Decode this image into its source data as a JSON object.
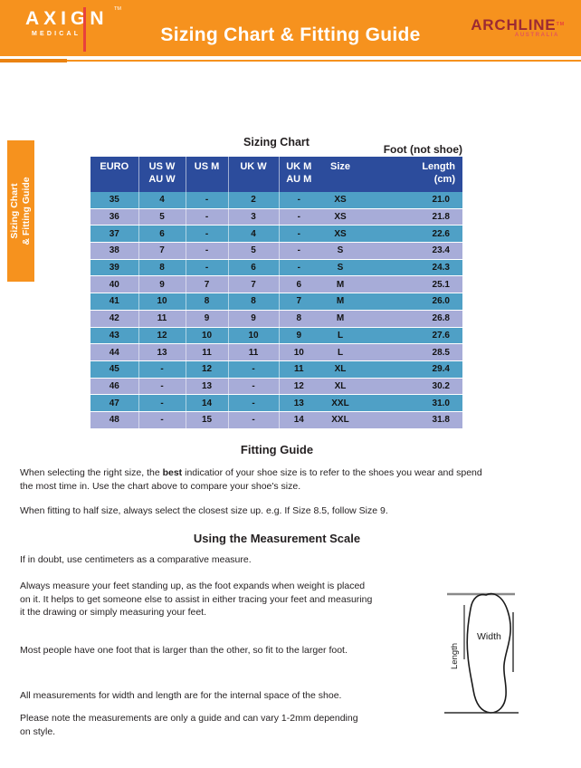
{
  "colors": {
    "orange": "#F6921E",
    "table_header_blue": "#2C4C9C",
    "row_teal": "#4FA0C6",
    "row_periwinkle": "#A7ACD8",
    "archline_maroon": "#9C2A33",
    "accent_red": "#E8413C",
    "text": "#231F20"
  },
  "header": {
    "axign": {
      "name": "AXIGN",
      "sub": "MEDICAL",
      "tm": "TM"
    },
    "title": "Sizing Chart & Fitting Guide",
    "archline": {
      "name": "ARCHLINE",
      "sub": "AUSTRALIA",
      "tm": "TM"
    }
  },
  "side_tab": {
    "label": "Sizing Chart\n& Fitting Guide"
  },
  "sizing_chart": {
    "title": "Sizing Chart",
    "foot_label": "Foot (not shoe)",
    "columns": [
      {
        "l1": "EURO",
        "l2": ""
      },
      {
        "l1": "US W",
        "l2": "AU W"
      },
      {
        "l1": "US M",
        "l2": ""
      },
      {
        "l1": "UK W",
        "l2": ""
      },
      {
        "l1": "UK M",
        "l2": "AU M"
      },
      {
        "l1": "Size",
        "l2": ""
      },
      {
        "l1": "Length",
        "l2": "(cm)"
      }
    ],
    "rows": [
      [
        "35",
        "4",
        "-",
        "2",
        "-",
        "XS",
        "21.0"
      ],
      [
        "36",
        "5",
        "-",
        "3",
        "-",
        "XS",
        "21.8"
      ],
      [
        "37",
        "6",
        "-",
        "4",
        "-",
        "XS",
        "22.6"
      ],
      [
        "38",
        "7",
        "-",
        "5",
        "-",
        "S",
        "23.4"
      ],
      [
        "39",
        "8",
        "-",
        "6",
        "-",
        "S",
        "24.3"
      ],
      [
        "40",
        "9",
        "7",
        "7",
        "6",
        "M",
        "25.1"
      ],
      [
        "41",
        "10",
        "8",
        "8",
        "7",
        "M",
        "26.0"
      ],
      [
        "42",
        "11",
        "9",
        "9",
        "8",
        "M",
        "26.8"
      ],
      [
        "43",
        "12",
        "10",
        "10",
        "9",
        "L",
        "27.6"
      ],
      [
        "44",
        "13",
        "11",
        "11",
        "10",
        "L",
        "28.5"
      ],
      [
        "45",
        "-",
        "12",
        "-",
        "11",
        "XL",
        "29.4"
      ],
      [
        "46",
        "-",
        "13",
        "-",
        "12",
        "XL",
        "30.2"
      ],
      [
        "47",
        "-",
        "14",
        "-",
        "13",
        "XXL",
        "31.0"
      ],
      [
        "48",
        "-",
        "15",
        "-",
        "14",
        "XXL",
        "31.8"
      ]
    ]
  },
  "fitting_guide": {
    "heading": "Fitting Guide",
    "p1_before": "When selecting the right size, the ",
    "p1_bold": "best",
    "p1_after": " indicatior of your shoe size is to refer to the shoes you wear and spend\nthe most time in. Use the chart above to compare your shoe's size.",
    "p2": "When fitting to half size, always select the closest size up. e.g. If Size 8.5, follow Size 9."
  },
  "measurement": {
    "heading": "Using the Measurement Scale",
    "p1": "If in doubt, use centimeters as a comparative measure.",
    "p2": "Always measure your feet standing up, as the foot expands when weight is placed\non it. It helps to get someone else to assist in either tracing your feet and measuring\nit the drawing or simply measuring your feet.",
    "p3": "Most people have one foot that is larger than the other, so fit to the larger foot."
  },
  "footnotes": {
    "p1": "All measurements for width and length are for the internal space of the shoe.",
    "p2": "Please note the measurements are only a guide and can vary 1-2mm depending\non style."
  },
  "diagram": {
    "width_label": "Width",
    "length_label": "Length"
  }
}
